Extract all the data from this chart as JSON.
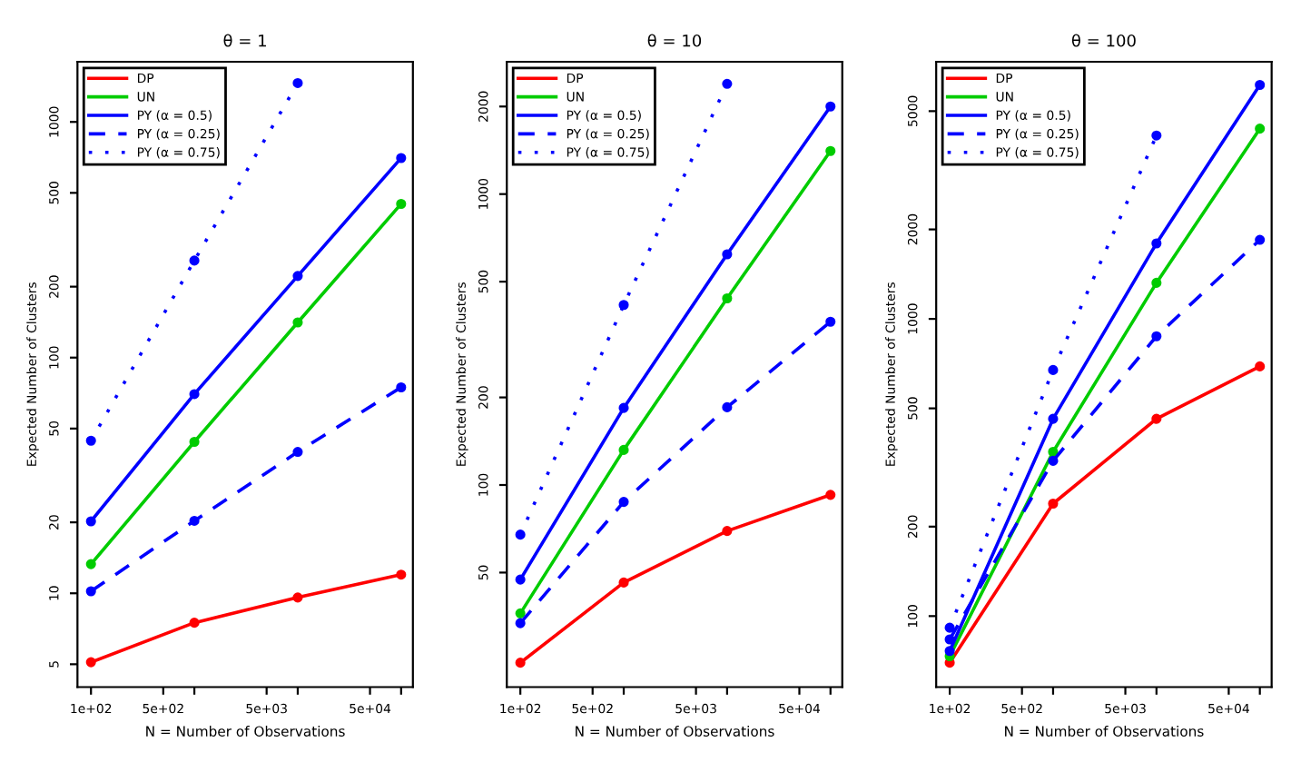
{
  "chart_data": [
    {
      "type": "line",
      "title": "θ = 1",
      "xlabel": "N = Number of Observations",
      "ylabel": "Expected Number of Clusters",
      "log": "xy",
      "marker": "circle",
      "legend": "top left",
      "grid": false,
      "x": [
        100,
        1000,
        10000,
        100000
      ],
      "xlim": [
        74,
        130000
      ],
      "xticks": [
        {
          "value": 100,
          "label": "1e+02"
        },
        {
          "value": 500,
          "label": "5e+02"
        },
        {
          "value": 1000,
          "label": null
        },
        {
          "value": 5000,
          "label": "5e+03"
        },
        {
          "value": 10000,
          "label": null
        },
        {
          "value": 50000,
          "label": "5e+04"
        },
        {
          "value": 100000,
          "label": null
        }
      ],
      "ylim": [
        4.0,
        1800
      ],
      "yticks": [
        5,
        10,
        20,
        50,
        100,
        200,
        500,
        1000
      ],
      "series": [
        {
          "name": "DP",
          "color": "#ff0000",
          "line_style": "solid",
          "values": [
            5.1,
            7.5,
            9.6,
            12.0
          ]
        },
        {
          "name": "UN",
          "color": "#00cc00",
          "line_style": "solid",
          "values": [
            13.3,
            43.9,
            141,
            449
          ]
        },
        {
          "name": "PY (α = 0.5)",
          "color": "#0000ff",
          "line_style": "solid",
          "values": [
            20.2,
            70,
            222,
            703
          ]
        },
        {
          "name": "PY (α = 0.25)",
          "color": "#0000ff",
          "line_style": "dashed",
          "values": [
            10.2,
            20.3,
            39.8,
            74.8
          ]
        },
        {
          "name": "PY (α = 0.75)",
          "color": "#0000ff",
          "line_style": "dotted",
          "values": [
            44.4,
            258,
            1462,
            null
          ]
        }
      ]
    },
    {
      "type": "line",
      "title": "θ = 10",
      "xlabel": "N = Number of Observations",
      "ylabel": "Expected Number of Clusters",
      "log": "xy",
      "marker": "circle",
      "legend": "top left",
      "grid": false,
      "x": [
        100,
        1000,
        10000,
        100000
      ],
      "xlim": [
        74,
        130000
      ],
      "xticks": [
        {
          "value": 100,
          "label": "1e+02"
        },
        {
          "value": 500,
          "label": "5e+02"
        },
        {
          "value": 1000,
          "label": null
        },
        {
          "value": 5000,
          "label": "5e+03"
        },
        {
          "value": 10000,
          "label": null
        },
        {
          "value": 50000,
          "label": "5e+04"
        },
        {
          "value": 100000,
          "label": null
        }
      ],
      "ylim": [
        20.2,
        2850
      ],
      "yticks": [
        50,
        100,
        200,
        500,
        1000,
        2000
      ],
      "series": [
        {
          "name": "DP",
          "color": "#ff0000",
          "line_style": "solid",
          "values": [
            24.5,
            46.2,
            69.5,
            92.5
          ]
        },
        {
          "name": "UN",
          "color": "#00cc00",
          "line_style": "solid",
          "values": [
            36.2,
            132,
            438,
            1406
          ]
        },
        {
          "name": "PY (α = 0.5)",
          "color": "#0000ff",
          "line_style": "solid",
          "values": [
            47.3,
            184,
            621,
            2000
          ]
        },
        {
          "name": "PY (α = 0.25)",
          "color": "#0000ff",
          "line_style": "dashed",
          "values": [
            33.5,
            87.5,
            185,
            364
          ]
        },
        {
          "name": "PY (α = 0.75)",
          "color": "#0000ff",
          "line_style": "dotted",
          "values": [
            67.5,
            416,
            2393,
            null
          ]
        }
      ]
    },
    {
      "type": "line",
      "title": "θ = 100",
      "xlabel": "N = Number of Observations",
      "ylabel": "Expected Number of Clusters",
      "log": "xy",
      "marker": "circle",
      "legend": "top left",
      "grid": false,
      "x": [
        100,
        1000,
        10000,
        100000
      ],
      "xlim": [
        74,
        130000
      ],
      "xticks": [
        {
          "value": 100,
          "label": "1e+02"
        },
        {
          "value": 500,
          "label": "5e+02"
        },
        {
          "value": 1000,
          "label": null
        },
        {
          "value": 5000,
          "label": "5e+03"
        },
        {
          "value": 10000,
          "label": null
        },
        {
          "value": 50000,
          "label": "5e+04"
        },
        {
          "value": 100000,
          "label": null
        }
      ],
      "ylim": [
        57.7,
        7330
      ],
      "yticks": [
        100,
        200,
        500,
        1000,
        2000,
        5000
      ],
      "series": [
        {
          "name": "DP",
          "color": "#ff0000",
          "line_style": "solid",
          "values": [
            69.7,
            239,
            461,
            692
          ]
        },
        {
          "name": "UN",
          "color": "#00cc00",
          "line_style": "solid",
          "values": [
            73.3,
            357,
            1322,
            4365
          ]
        },
        {
          "name": "PY (α = 0.5)",
          "color": "#0000ff",
          "line_style": "solid",
          "values": [
            76.3,
            461,
            1795,
            6125
          ]
        },
        {
          "name": "PY (α = 0.25)",
          "color": "#0000ff",
          "line_style": "dashed",
          "values": [
            83.5,
            333,
            874,
            1845
          ]
        },
        {
          "name": "PY (α = 0.75)",
          "color": "#0000ff",
          "line_style": "dotted",
          "values": [
            91.4,
            673,
            4140,
            null
          ]
        }
      ]
    }
  ]
}
